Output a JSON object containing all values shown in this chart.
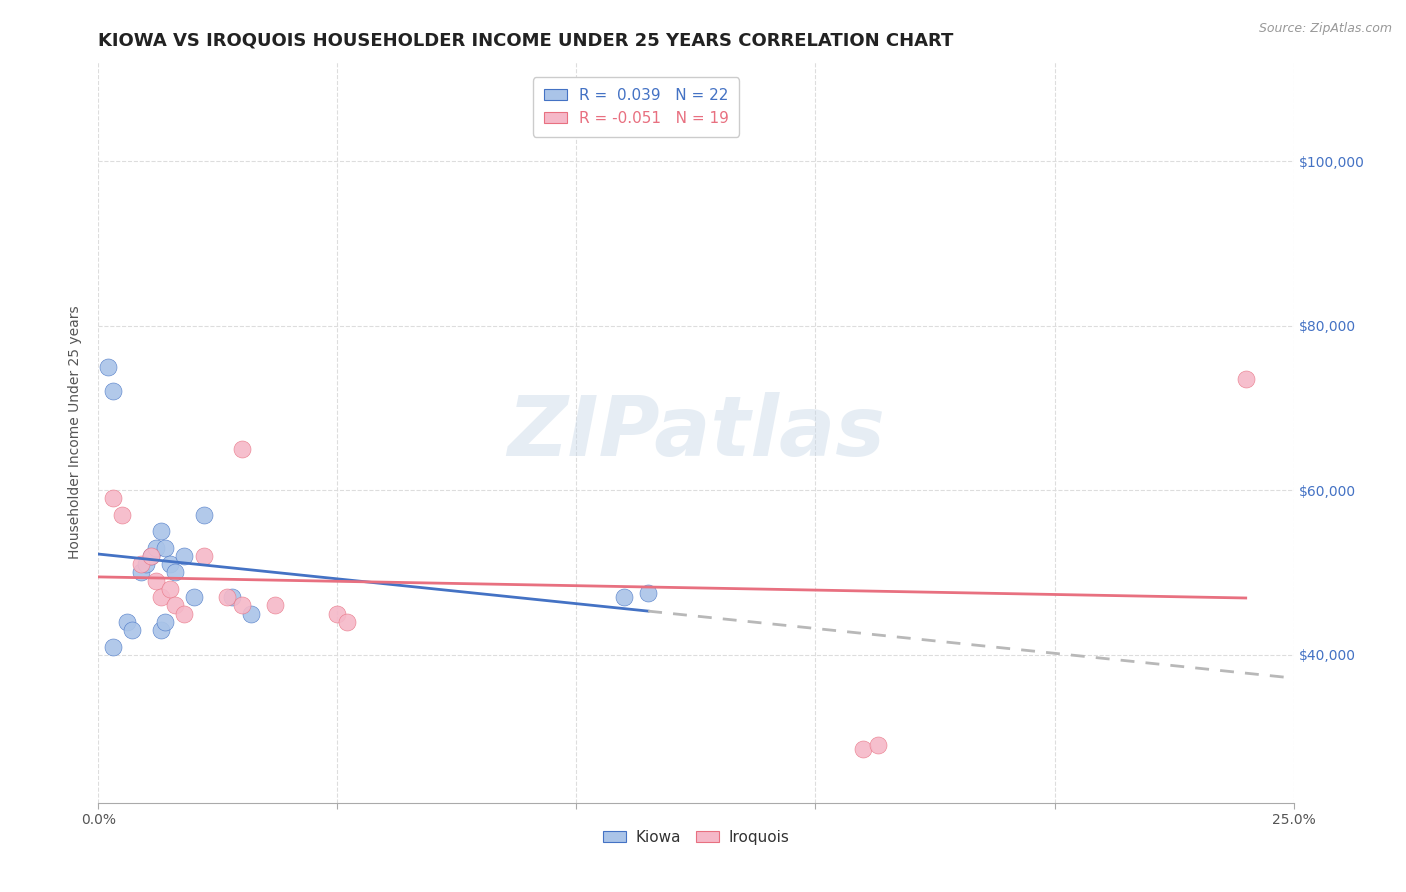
{
  "title": "KIOWA VS IROQUOIS HOUSEHOLDER INCOME UNDER 25 YEARS CORRELATION CHART",
  "source": "Source: ZipAtlas.com",
  "ylabel": "Householder Income Under 25 years",
  "xlim": [
    0.0,
    0.25
  ],
  "ylim": [
    22000,
    112000
  ],
  "ytick_vals": [
    40000,
    60000,
    80000,
    100000
  ],
  "ytick_labels": [
    "$40,000",
    "$60,000",
    "$80,000",
    "$100,000"
  ],
  "xtick_vals": [
    0.0,
    0.05,
    0.1,
    0.15,
    0.2,
    0.25
  ],
  "xtick_labels": [
    "0.0%",
    "",
    "",
    "",
    "",
    "25.0%"
  ],
  "kiowa_color": "#aac4e8",
  "iroquois_color": "#f5b8c8",
  "kiowa_line_color": "#4472c4",
  "iroquois_line_color": "#e87080",
  "trend_ext_color": "#b8b8b8",
  "R_kiowa": 0.039,
  "N_kiowa": 22,
  "R_iroquois": -0.051,
  "N_iroquois": 19,
  "legend_label_kiowa": "Kiowa",
  "legend_label_iroquois": "Iroquois",
  "watermark": "ZIPatlas",
  "kiowa_x": [
    0.003,
    0.006,
    0.007,
    0.009,
    0.01,
    0.011,
    0.012,
    0.013,
    0.014,
    0.015,
    0.016,
    0.018,
    0.02,
    0.022,
    0.028,
    0.032,
    0.002,
    0.003,
    0.11,
    0.115,
    0.013,
    0.014
  ],
  "kiowa_y": [
    41000,
    44000,
    43000,
    50000,
    51000,
    52000,
    53000,
    55000,
    53000,
    51000,
    50000,
    52000,
    47000,
    57000,
    47000,
    45000,
    75000,
    72000,
    47000,
    47500,
    43000,
    44000
  ],
  "iroquois_x": [
    0.003,
    0.005,
    0.009,
    0.011,
    0.012,
    0.013,
    0.015,
    0.016,
    0.018,
    0.022,
    0.027,
    0.03,
    0.03,
    0.037,
    0.05,
    0.052,
    0.16,
    0.163,
    0.24
  ],
  "iroquois_y": [
    59000,
    57000,
    51000,
    52000,
    49000,
    47000,
    48000,
    46000,
    45000,
    52000,
    47000,
    46000,
    65000,
    46000,
    45000,
    44000,
    28500,
    29000,
    73500
  ],
  "bg_color": "#ffffff",
  "grid_color": "#dddddd",
  "title_fontsize": 13,
  "axis_label_fontsize": 10,
  "tick_fontsize": 10
}
